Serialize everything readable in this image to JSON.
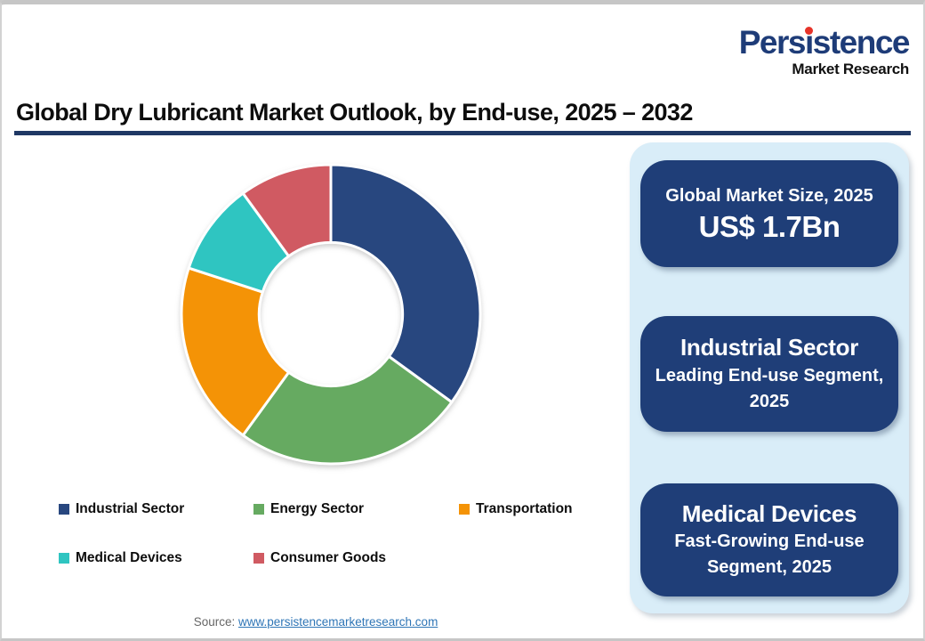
{
  "logo": {
    "name_pre": "Pers",
    "name_i": "ı",
    "name_post": "stence",
    "tagline": "Market Research"
  },
  "title": {
    "text": "Global Dry Lubricant Market Outlook, by End-use, 2025 – 2032"
  },
  "chart_data": {
    "type": "pie",
    "subtype": "donut",
    "title": "Global Dry Lubricant Market Outlook, by End-use, 2025 – 2032",
    "categories": [
      "Industrial Sector",
      "Energy Sector",
      "Transportation",
      "Medical Devices",
      "Consumer Goods"
    ],
    "values": [
      35,
      25,
      20,
      10,
      10
    ],
    "unit": "percent-share (estimated from slice angles)",
    "colors": [
      "#28477f",
      "#66aa61",
      "#f49306",
      "#2fc5c1",
      "#d05a62"
    ],
    "start_angle_deg_from_top": 0,
    "direction": "clockwise",
    "inner_radius_ratio": 0.48,
    "legend_position": "bottom",
    "data_labels": false
  },
  "panel": {
    "cards": [
      {
        "line1": "Global Market Size, 2025",
        "line2": "US$ 1.7Bn"
      },
      {
        "line1": "Industrial Sector",
        "line2": "Leading End-use Segment, 2025"
      },
      {
        "line1": "Medical Devices",
        "line2": "Fast-Growing End-use Segment, 2025"
      }
    ]
  },
  "footer": {
    "label": "Source:",
    "link": "www.persistencemarketresearch.com"
  },
  "colors": {
    "navy_card": "#1f3e78",
    "panel_bg": "#d9edf8",
    "title_rule": "#1f3864",
    "logo_navy": "#1e3c78",
    "logo_red": "#e63329",
    "link_blue": "#2e75b6",
    "source_gray": "#666666"
  }
}
